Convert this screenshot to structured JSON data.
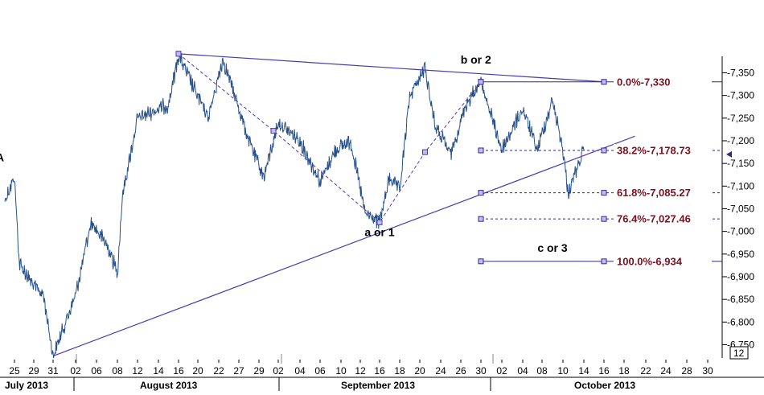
{
  "colors": {
    "background": "#ffffff",
    "price_series": "#25508c",
    "trendline": "#4a3ab0",
    "fib_line": "#2c2a8c",
    "fib_label": "#7b1020",
    "handle_fill": "#c8b8ff",
    "axis": "#000000"
  },
  "chart_data": {
    "type": "line",
    "ylim": [
      6700,
      7400
    ],
    "y_ticks": [
      6750,
      6800,
      6850,
      6900,
      6950,
      7000,
      7050,
      7100,
      7150,
      7200,
      7250,
      7300,
      7350
    ],
    "y_tick_labels": [
      "-6,750",
      "-6,800",
      "-6,850",
      "-6,900",
      "-6,950",
      "-7,000",
      "-7,050",
      "-7,100",
      "-7,150",
      "-7,200",
      "-7,250",
      "-7,300",
      "-7,350"
    ],
    "x_tick_labels": [
      "25",
      "29",
      "31",
      "02",
      "06",
      "08",
      "12",
      "14",
      "16",
      "20",
      "22",
      "27",
      "29",
      "02",
      "04",
      "06",
      "10",
      "12",
      "16",
      "18",
      "20",
      "24",
      "26",
      "30",
      "02",
      "04",
      "08",
      "10",
      "14",
      "16",
      "18",
      "22",
      "24",
      "28",
      "30"
    ],
    "x_months": [
      "July 2013",
      "August 2013",
      "September 2013",
      "October 2013"
    ],
    "interval_label": "12",
    "price_key_points": [
      {
        "x": "2013-07-23",
        "y": 7070
      },
      {
        "x": "2013-07-25",
        "y": 7120
      },
      {
        "x": "2013-07-26",
        "y": 6930
      },
      {
        "x": "2013-07-29",
        "y": 6880
      },
      {
        "x": "2013-07-30",
        "y": 6860
      },
      {
        "x": "2013-07-31",
        "y": 6725
      },
      {
        "x": "2013-08-02",
        "y": 6860
      },
      {
        "x": "2013-08-05",
        "y": 7020
      },
      {
        "x": "2013-08-07",
        "y": 6970
      },
      {
        "x": "2013-08-08",
        "y": 6910
      },
      {
        "x": "2013-08-09",
        "y": 7080
      },
      {
        "x": "2013-08-12",
        "y": 7250
      },
      {
        "x": "2013-08-15",
        "y": 7280
      },
      {
        "x": "2013-08-16",
        "y": 7390
      },
      {
        "x": "2013-08-19",
        "y": 7320
      },
      {
        "x": "2013-08-21",
        "y": 7250
      },
      {
        "x": "2013-08-23",
        "y": 7380
      },
      {
        "x": "2013-08-26",
        "y": 7300
      },
      {
        "x": "2013-08-28",
        "y": 7200
      },
      {
        "x": "2013-08-30",
        "y": 7120
      },
      {
        "x": "2013-09-02",
        "y": 7240
      },
      {
        "x": "2013-09-04",
        "y": 7200
      },
      {
        "x": "2013-09-06",
        "y": 7110
      },
      {
        "x": "2013-09-09",
        "y": 7180
      },
      {
        "x": "2013-09-11",
        "y": 7200
      },
      {
        "x": "2013-09-13",
        "y": 7040
      },
      {
        "x": "2013-09-16",
        "y": 7020
      },
      {
        "x": "2013-09-17",
        "y": 7120
      },
      {
        "x": "2013-09-18",
        "y": 7090
      },
      {
        "x": "2013-09-19",
        "y": 7300
      },
      {
        "x": "2013-09-21",
        "y": 7360
      },
      {
        "x": "2013-09-23",
        "y": 7230
      },
      {
        "x": "2013-09-25",
        "y": 7170
      },
      {
        "x": "2013-09-27",
        "y": 7280
      },
      {
        "x": "2013-09-30",
        "y": 7330
      },
      {
        "x": "2013-10-02",
        "y": 7180
      },
      {
        "x": "2013-10-04",
        "y": 7270
      },
      {
        "x": "2013-10-07",
        "y": 7180
      },
      {
        "x": "2013-10-09",
        "y": 7290
      },
      {
        "x": "2013-10-10",
        "y": 7180
      },
      {
        "x": "2013-10-11",
        "y": 7085
      },
      {
        "x": "2013-10-13",
        "y": 7150
      },
      {
        "x": "2013-10-14",
        "y": 7180
      }
    ],
    "trendlines": [
      {
        "name": "upper",
        "style": "solid",
        "from": {
          "x": "2013-08-16",
          "y": 7392
        },
        "to": {
          "x": "2013-10-16",
          "y": 7330
        }
      },
      {
        "name": "lower",
        "style": "solid",
        "from": {
          "x": "2013-07-31",
          "y": 6725
        },
        "to": {
          "x": "2013-10-20",
          "y": 7210
        }
      },
      {
        "name": "zigzag",
        "style": "dashed",
        "points": [
          {
            "x": "2013-08-16",
            "y": 7392
          },
          {
            "x": "2013-09-01",
            "y": 7222
          },
          {
            "x": "2013-09-16",
            "y": 7020
          },
          {
            "x": "2013-09-21",
            "y": 7175
          },
          {
            "x": "2013-09-30",
            "y": 7330
          }
        ]
      }
    ],
    "fibonacci": {
      "anchor_start": "2013-09-30",
      "label_date": "2013-10-16",
      "end": "2013-10-31",
      "levels": [
        {
          "label": "0.0%-7,330",
          "value": 7330,
          "style": "solid"
        },
        {
          "label": "38.2%-7,178.73",
          "value": 7178.73,
          "style": "dashed"
        },
        {
          "label": "61.8%-7,085.27",
          "value": 7085.27,
          "style": "dashed"
        },
        {
          "label": "76.4%-7,027.46",
          "value": 7027.46,
          "style": "dashed"
        },
        {
          "label": "100.0%-6,934",
          "value": 6934,
          "style": "solid"
        }
      ]
    },
    "annotations": [
      {
        "text": "A",
        "x": "2013-07-22",
        "y": 7155
      },
      {
        "text": "b or 2",
        "x": "2013-09-29",
        "y": 7370
      },
      {
        "text": "a or 1",
        "x": "2013-09-16",
        "y": 6990
      },
      {
        "text": "c or 3",
        "x": "2013-10-09",
        "y": 6955
      }
    ],
    "last_value_marker": 7170
  }
}
